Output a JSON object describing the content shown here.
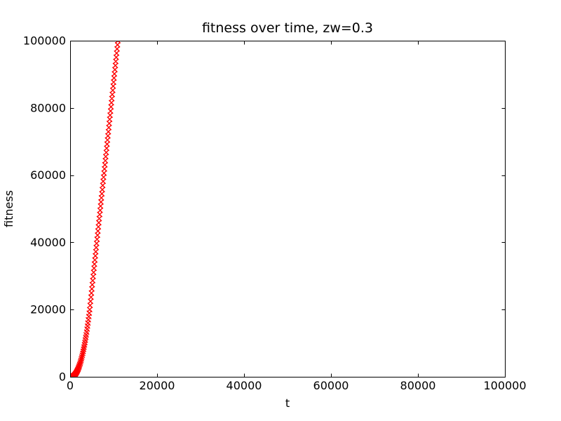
{
  "figure": {
    "background": "#ffffff",
    "spine_color": "#000000",
    "tick_color": "#000000",
    "text_color": "#000000"
  },
  "chart_data": {
    "type": "scatter",
    "title": "fitness over time, zw=0.3",
    "xlabel": "t",
    "ylabel": "fitness",
    "xlim": [
      0,
      100000
    ],
    "ylim": [
      0,
      100000
    ],
    "xticks": [
      0,
      20000,
      40000,
      60000,
      80000,
      100000
    ],
    "yticks": [
      0,
      20000,
      40000,
      60000,
      80000,
      100000
    ],
    "xtick_labels": [
      "0",
      "20000",
      "40000",
      "60000",
      "80000",
      "100000"
    ],
    "ytick_labels": [
      "0",
      "20000",
      "40000",
      "60000",
      "80000",
      "100000"
    ],
    "grid": false,
    "legend_position": "none",
    "tick_direction": "in",
    "ticks_all_sides": true,
    "series": [
      {
        "name": "fitness",
        "marker": "x",
        "marker_color": "#ff0000",
        "marker_size": 7,
        "line_style": "none",
        "points": [
          [
            0,
            0
          ],
          [
            100,
            2
          ],
          [
            200,
            11
          ],
          [
            300,
            30
          ],
          [
            400,
            60
          ],
          [
            500,
            103
          ],
          [
            600,
            159
          ],
          [
            700,
            230
          ],
          [
            800,
            317
          ],
          [
            900,
            420
          ],
          [
            1000,
            540
          ],
          [
            1100,
            680
          ],
          [
            1200,
            838
          ],
          [
            1300,
            1016
          ],
          [
            1400,
            1214
          ],
          [
            1500,
            1431
          ],
          [
            1600,
            1671
          ],
          [
            1700,
            1933
          ],
          [
            1800,
            2218
          ],
          [
            1900,
            2526
          ],
          [
            2000,
            2858
          ],
          [
            2100,
            3213
          ],
          [
            2200,
            3592
          ],
          [
            2300,
            3995
          ],
          [
            2400,
            4423
          ],
          [
            2500,
            4878
          ],
          [
            2600,
            5357
          ],
          [
            2700,
            5869
          ],
          [
            2800,
            6404
          ],
          [
            2900,
            6966
          ],
          [
            3000,
            7558
          ],
          [
            3100,
            8176
          ],
          [
            3200,
            8824
          ],
          [
            3300,
            9500
          ],
          [
            3400,
            10206
          ],
          [
            3500,
            10941
          ],
          [
            3600,
            11707
          ],
          [
            3700,
            12502
          ],
          [
            3800,
            13328
          ],
          [
            3900,
            14186
          ],
          [
            4000,
            15074
          ],
          [
            4100,
            15996
          ],
          [
            4200,
            16948
          ],
          [
            4300,
            17932
          ],
          [
            4400,
            18950
          ],
          [
            4500,
            20000
          ],
          [
            4600,
            21231
          ],
          [
            4700,
            22462
          ],
          [
            4800,
            23692
          ],
          [
            4900,
            24923
          ],
          [
            5000,
            26154
          ],
          [
            5100,
            27385
          ],
          [
            5200,
            28615
          ],
          [
            5300,
            29846
          ],
          [
            5400,
            31077
          ],
          [
            5500,
            32308
          ],
          [
            5600,
            33538
          ],
          [
            5700,
            34769
          ],
          [
            5800,
            36000
          ],
          [
            5900,
            37231
          ],
          [
            6000,
            38462
          ],
          [
            6100,
            39692
          ],
          [
            6200,
            40923
          ],
          [
            6300,
            42154
          ],
          [
            6400,
            43385
          ],
          [
            6500,
            44615
          ],
          [
            6600,
            45846
          ],
          [
            6700,
            47077
          ],
          [
            6800,
            48308
          ],
          [
            6900,
            49538
          ],
          [
            7000,
            50769
          ],
          [
            7100,
            52000
          ],
          [
            7200,
            53231
          ],
          [
            7300,
            54462
          ],
          [
            7400,
            55692
          ],
          [
            7500,
            56923
          ],
          [
            7600,
            58154
          ],
          [
            7700,
            59385
          ],
          [
            7800,
            60615
          ],
          [
            7900,
            61846
          ],
          [
            8000,
            63077
          ],
          [
            8100,
            64308
          ],
          [
            8200,
            65538
          ],
          [
            8300,
            66769
          ],
          [
            8400,
            68000
          ],
          [
            8500,
            69231
          ],
          [
            8600,
            70462
          ],
          [
            8700,
            71692
          ],
          [
            8800,
            72923
          ],
          [
            8900,
            74154
          ],
          [
            9000,
            75385
          ],
          [
            9100,
            76615
          ],
          [
            9200,
            77846
          ],
          [
            9300,
            79077
          ],
          [
            9400,
            80308
          ],
          [
            9500,
            81538
          ],
          [
            9600,
            82769
          ],
          [
            9700,
            84000
          ],
          [
            9800,
            85231
          ],
          [
            9900,
            86462
          ],
          [
            10000,
            87692
          ],
          [
            10100,
            88923
          ],
          [
            10200,
            90154
          ],
          [
            10300,
            91385
          ],
          [
            10400,
            92615
          ],
          [
            10500,
            93846
          ],
          [
            10600,
            95077
          ],
          [
            10700,
            96308
          ],
          [
            10800,
            97538
          ],
          [
            10900,
            98769
          ],
          [
            11000,
            100000
          ]
        ]
      }
    ]
  }
}
